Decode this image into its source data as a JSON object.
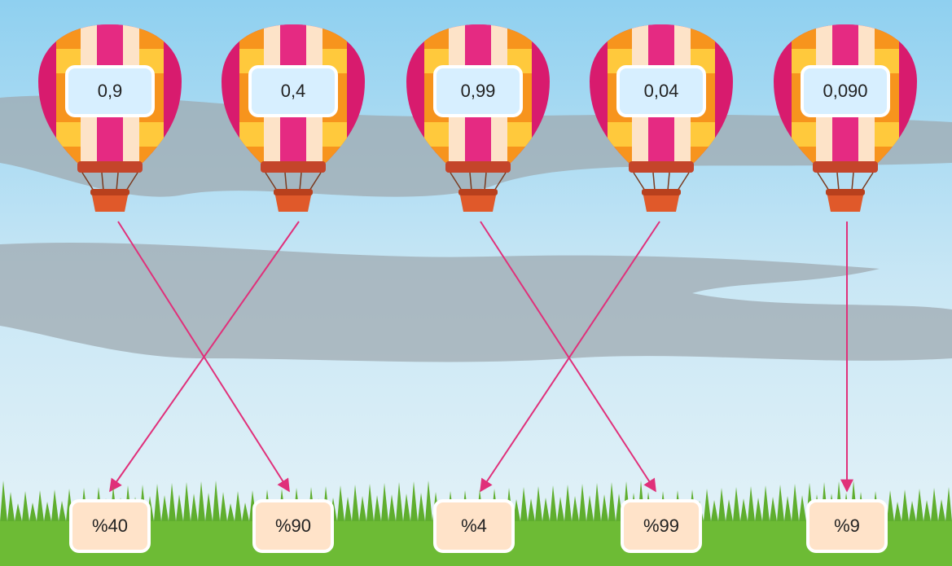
{
  "balloons": [
    {
      "label": "0,9"
    },
    {
      "label": "0,4"
    },
    {
      "label": "0,99"
    },
    {
      "label": "0,04"
    },
    {
      "label": "0,090"
    }
  ],
  "targets": [
    {
      "label": "%40"
    },
    {
      "label": "%90"
    },
    {
      "label": "%4"
    },
    {
      "label": "%99"
    },
    {
      "label": "%9"
    }
  ]
}
